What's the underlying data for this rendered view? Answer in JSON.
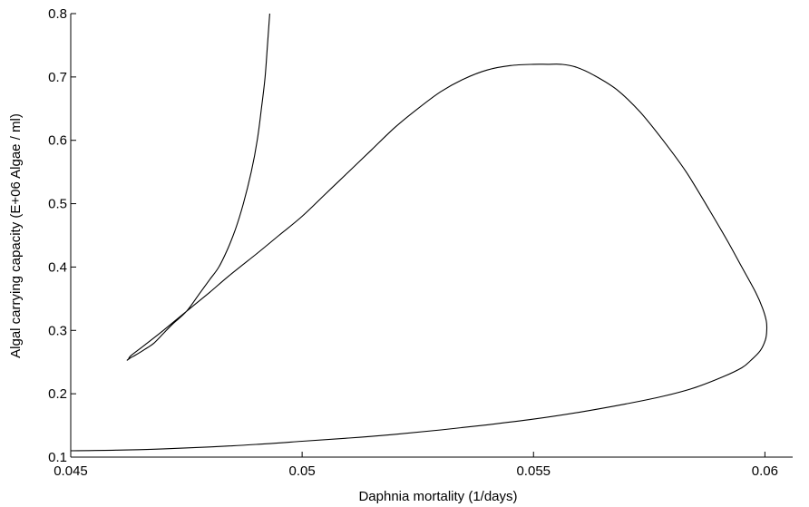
{
  "chart_data": {
    "type": "line",
    "title": "",
    "xlabel": "Daphnia mortality (1/days)",
    "ylabel": "Algal carrying capacity (E+06 Algae / ml)",
    "xlim": [
      0.045,
      0.0606
    ],
    "ylim": [
      0.1,
      0.8
    ],
    "xticks": [
      0.045,
      0.05,
      0.055,
      0.06
    ],
    "xtick_labels": [
      "0.045",
      "0.05",
      "0.055",
      "0.06"
    ],
    "yticks": [
      0.1,
      0.2,
      0.3,
      0.4,
      0.5,
      0.6,
      0.7,
      0.8
    ],
    "ytick_labels": [
      "0.1",
      "0.2",
      "0.3",
      "0.4",
      "0.5",
      "0.6",
      "0.7",
      "0.8"
    ],
    "grid": false,
    "legend": "none",
    "series": [
      {
        "x": [
          0.0493,
          0.04925,
          0.0492,
          0.04912,
          0.04903,
          0.0489,
          0.04873,
          0.04856,
          0.0484,
          0.0482,
          0.048,
          0.0478,
          0.0475,
          0.0472,
          0.047,
          0.0468,
          0.0466,
          0.0464,
          0.0463,
          0.04622,
          0.04625,
          0.0463,
          0.0466,
          0.047,
          0.0475,
          0.048,
          0.0484,
          0.049,
          0.0495,
          0.05,
          0.0505,
          0.051,
          0.0515,
          0.052,
          0.0525,
          0.053,
          0.0535,
          0.054,
          0.0545,
          0.055,
          0.0553,
          0.0556,
          0.0559,
          0.0563,
          0.0568,
          0.0573,
          0.0578,
          0.0583,
          0.0588,
          0.0592,
          0.0595,
          0.0598,
          0.05995,
          0.06003,
          0.06004,
          0.06001,
          0.0599,
          0.0597,
          0.0595,
          0.0591,
          0.0585,
          0.0578,
          0.057,
          0.056,
          0.055,
          0.054,
          0.053,
          0.052,
          0.051,
          0.05,
          0.049,
          0.048,
          0.047,
          0.046,
          0.045
        ],
        "y": [
          0.8,
          0.75,
          0.7,
          0.65,
          0.6,
          0.55,
          0.5,
          0.46,
          0.43,
          0.4,
          0.38,
          0.36,
          0.33,
          0.31,
          0.295,
          0.28,
          0.27,
          0.261,
          0.257,
          0.253,
          0.255,
          0.26,
          0.277,
          0.3,
          0.33,
          0.36,
          0.385,
          0.42,
          0.45,
          0.48,
          0.515,
          0.55,
          0.585,
          0.62,
          0.65,
          0.677,
          0.697,
          0.711,
          0.718,
          0.72,
          0.72,
          0.72,
          0.716,
          0.703,
          0.68,
          0.645,
          0.6,
          0.55,
          0.49,
          0.44,
          0.4,
          0.36,
          0.335,
          0.315,
          0.3,
          0.285,
          0.268,
          0.253,
          0.241,
          0.227,
          0.21,
          0.196,
          0.184,
          0.171,
          0.16,
          0.151,
          0.143,
          0.136,
          0.13,
          0.125,
          0.12,
          0.116,
          0.113,
          0.111,
          0.11
        ]
      }
    ]
  }
}
